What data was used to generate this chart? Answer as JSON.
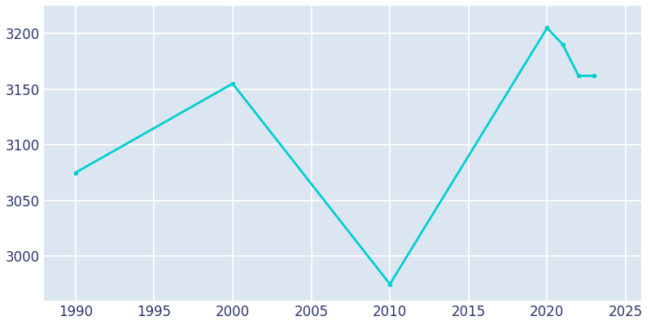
{
  "years": [
    1990,
    2000,
    2010,
    2020,
    2021,
    2022,
    2023
  ],
  "population": [
    3075,
    3155,
    2975,
    3205,
    3190,
    3162,
    3162
  ],
  "line_color": "#00CED1",
  "plot_bg_color": "#dce6f0",
  "fig_bg_color": "#ffffff",
  "grid_color": "#ffffff",
  "tick_color": "#2d3670",
  "xlim": [
    1988,
    2026
  ],
  "ylim": [
    2960,
    3225
  ],
  "xticks": [
    1990,
    1995,
    2000,
    2005,
    2010,
    2015,
    2020,
    2025
  ],
  "yticks": [
    3000,
    3050,
    3100,
    3150,
    3200
  ],
  "line_width": 2.0,
  "marker": "o",
  "marker_size": 3,
  "tick_fontsize": 12
}
